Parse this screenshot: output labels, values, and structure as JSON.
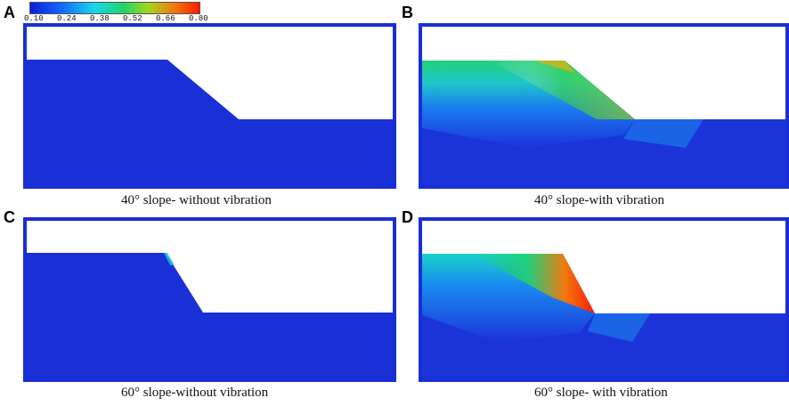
{
  "colorbar": {
    "ticks": [
      "0.10",
      "0.24",
      "0.38",
      "0.52",
      "0.66",
      "0.80"
    ],
    "colors": [
      "#0a1fd6",
      "#1466ff",
      "#19d8e8",
      "#22d36a",
      "#a5d61a",
      "#f07a10",
      "#ff1a00"
    ]
  },
  "panels": [
    {
      "letter": "A",
      "caption": "40° slope- without vibration"
    },
    {
      "letter": "B",
      "caption": "40° slope-with vibration"
    },
    {
      "letter": "C",
      "caption": "60° slope-without vibration"
    },
    {
      "letter": "D",
      "caption": "60° slope- with vibration"
    }
  ],
  "colors": {
    "frame": "#1a2ed6",
    "soil_base": "#1830d6"
  }
}
